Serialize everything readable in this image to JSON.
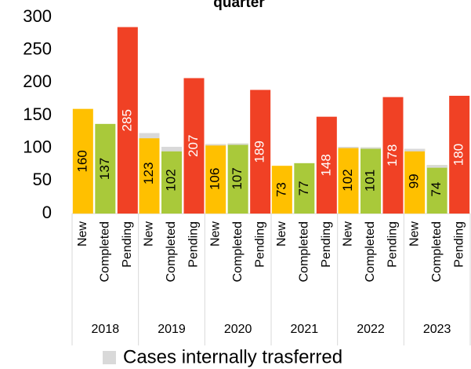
{
  "chart_data": {
    "type": "bar",
    "title": "quarter",
    "categories": [
      "2018",
      "2019",
      "2020",
      "2021",
      "2022",
      "2023"
    ],
    "series": [
      {
        "name": "New",
        "color": "#ffc000",
        "values": [
          160,
          123,
          106,
          73,
          102,
          99
        ],
        "transferred": [
          null,
          8,
          2,
          null,
          2,
          4
        ]
      },
      {
        "name": "Completed",
        "color": "#a9c93a",
        "values": [
          137,
          102,
          107,
          77,
          101,
          74
        ],
        "transferred": [
          null,
          7,
          2,
          null,
          2,
          4
        ]
      },
      {
        "name": "Pending",
        "color": "#f04125",
        "values": [
          285,
          207,
          189,
          148,
          178,
          180
        ],
        "transferred": [
          null,
          null,
          null,
          null,
          null,
          null
        ]
      }
    ],
    "transferred": {
      "name": "Cases internally trasferred",
      "color": "#d9d9d9"
    },
    "ylim": [
      0,
      300
    ],
    "yticks": [
      0,
      50,
      100,
      150,
      200,
      250,
      300
    ],
    "grid": false
  }
}
